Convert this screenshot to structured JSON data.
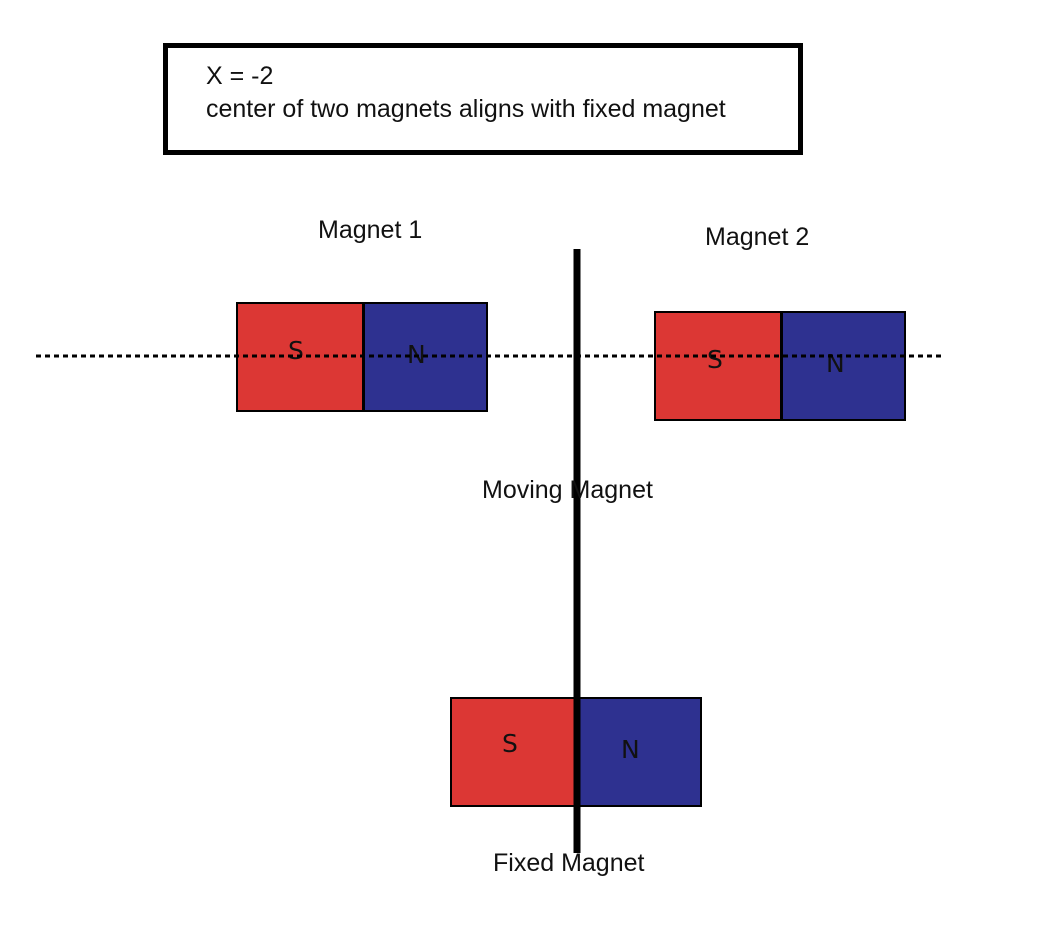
{
  "caption": {
    "line1": "X = -2",
    "line2": "center of two magnets aligns with fixed magnet"
  },
  "labels": {
    "magnet1": "Magnet 1",
    "magnet2": "Magnet 2",
    "moving": "Moving Magnet",
    "fixed": "Fixed Magnet"
  },
  "magnets": {
    "magnet1": {
      "south": "S",
      "north": "N"
    },
    "magnet2": {
      "south": "S",
      "north": "N"
    },
    "fixed": {
      "south": "S",
      "north": "N"
    }
  },
  "colors": {
    "south_pole": "#dc3734",
    "north_pole": "#2e3190",
    "outline": "#000000"
  }
}
